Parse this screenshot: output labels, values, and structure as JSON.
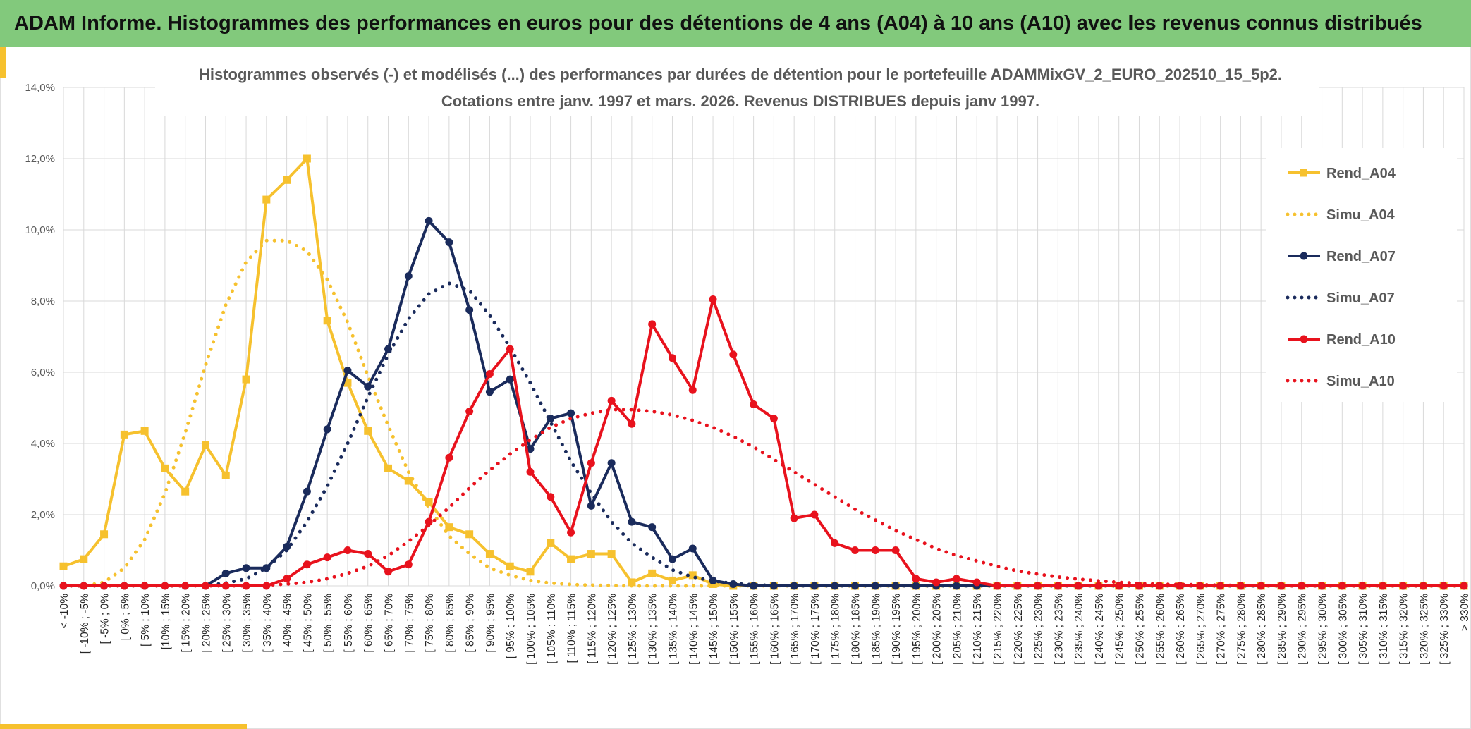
{
  "header": {
    "title": "ADAM Informe. Histogrammes des performances en euros pour des détentions de 4 ans (A04) à 10 ans (A10) avec les revenus connus distribués"
  },
  "colors": {
    "banner": "#82c97c",
    "accent": "#f6c12e",
    "a04": "#f6c12e",
    "a07": "#1a2b5c",
    "a10": "#e8121d",
    "grid": "#d9d9d9"
  },
  "chart_data": {
    "type": "line",
    "title": "Histogrammes observés (-) et modélisés (...) des performances par durées de détention pour le portefeuille ADAMMixGV_2_EURO_202510_15_5p2.",
    "subtitle": "Cotations entre janv. 1997 et mars. 2026. Revenus DISTRIBUES depuis janv 1997.",
    "xlabel": "",
    "ylabel": "",
    "ylim": [
      0,
      14
    ],
    "yticks": [
      0,
      2,
      4,
      6,
      8,
      10,
      12,
      14
    ],
    "ytick_labels": [
      "0,0%",
      "2,0%",
      "4,0%",
      "6,0%",
      "8,0%",
      "10,0%",
      "12,0%",
      "14,0%"
    ],
    "grid": true,
    "legend_position": "right",
    "categories": [
      "< -10%",
      "[ -10% ; -5%",
      "[ -5% ; 0%",
      "[ 0% ; 5%",
      "[ 5% ; 10%",
      "[10% ; 15%",
      "[ 15% ; 20%",
      "[ 20% ; 25%",
      "[ 25% ; 30%",
      "[ 30% ; 35%",
      "[ 35% ; 40%",
      "[ 40% ; 45%",
      "[ 45% ; 50%",
      "[ 50% ; 55%",
      "[ 55% ; 60%",
      "[ 60% ; 65%",
      "[ 65% ; 70%",
      "[ 70% ; 75%",
      "[ 75% ; 80%",
      "[ 80% ; 85%",
      "[ 85% ; 90%",
      "[ 90% ; 95%",
      "[ 95% ; 100%",
      "[ 100% ; 105%",
      "[ 105% ; 110%",
      "[ 110% ; 115%",
      "[ 115% ; 120%",
      "[ 120% ; 125%",
      "[ 125% ; 130%",
      "[ 130% ; 135%",
      "[ 135% ; 140%",
      "[ 140% ; 145%",
      "[ 145% ; 150%",
      "[ 150% ; 155%",
      "[ 155% ; 160%",
      "[ 160% ; 165%",
      "[ 165% ; 170%",
      "[ 170% ; 175%",
      "[ 175% ; 180%",
      "[ 180% ; 185%",
      "[ 185% ; 190%",
      "[ 190% ; 195%",
      "[ 195% ; 200%",
      "[ 200% ; 205%",
      "[ 205% ; 210%",
      "[ 210% ; 215%",
      "[ 215% ; 220%",
      "[ 220% ; 225%",
      "[ 225% ; 230%",
      "[ 230% ; 235%",
      "[ 235% ; 240%",
      "[ 240% ; 245%",
      "[ 245% ; 250%",
      "[ 250% ; 255%",
      "[ 255% ; 260%",
      "[ 260% ; 265%",
      "[ 265% ; 270%",
      "[ 270% ; 275%",
      "[ 275% ; 280%",
      "[ 280% ; 285%",
      "[ 285% ; 290%",
      "[ 290% ; 295%",
      "[ 295% ; 300%",
      "[ 300% ; 305%",
      "[ 305% ; 310%",
      "[ 310% ; 315%",
      "[ 315% ; 320%",
      "[ 320% ; 325%",
      "[ 325% ; 330%",
      "> 330%"
    ],
    "series": [
      {
        "name": "Rend_A04",
        "style": "solid",
        "marker": "square",
        "color": "#f6c12e",
        "values": [
          0.55,
          0.75,
          1.45,
          4.25,
          4.35,
          3.3,
          2.65,
          3.95,
          3.1,
          5.8,
          10.85,
          11.4,
          12.0,
          7.45,
          5.7,
          4.35,
          3.3,
          2.95,
          2.35,
          1.65,
          1.45,
          0.9,
          0.55,
          0.4,
          1.2,
          0.75,
          0.9,
          0.9,
          0.1,
          0.35,
          0.15,
          0.3,
          0.05,
          0,
          0,
          0,
          0,
          0,
          0,
          0,
          0,
          0,
          0,
          0,
          0,
          0,
          0,
          0,
          0,
          0,
          0,
          0,
          0,
          0,
          0,
          0,
          0,
          0,
          0,
          0,
          0,
          0,
          0,
          0,
          0,
          0,
          0,
          0,
          0,
          0
        ]
      },
      {
        "name": "Simu_A04",
        "style": "dotted",
        "marker": "none",
        "color": "#f6c12e",
        "values": [
          0,
          0,
          0.1,
          0.5,
          1.3,
          2.6,
          4.3,
          6.2,
          7.9,
          9.1,
          9.7,
          9.7,
          9.4,
          8.6,
          7.4,
          5.9,
          4.5,
          3.2,
          2.2,
          1.4,
          0.9,
          0.5,
          0.3,
          0.15,
          0.08,
          0.04,
          0.02,
          0.01,
          0,
          0,
          0,
          0,
          0,
          0,
          0,
          0,
          0,
          0,
          0,
          0,
          0,
          0,
          0,
          0,
          0,
          0,
          0,
          0,
          0,
          0,
          0,
          0,
          0,
          0,
          0,
          0,
          0,
          0,
          0,
          0,
          0,
          0,
          0,
          0,
          0,
          0,
          0,
          0,
          0,
          0
        ]
      },
      {
        "name": "Rend_A07",
        "style": "solid",
        "marker": "circle",
        "color": "#1a2b5c",
        "values": [
          0,
          0,
          0,
          0,
          0,
          0,
          0,
          0,
          0.35,
          0.5,
          0.5,
          1.1,
          2.65,
          4.4,
          6.05,
          5.6,
          6.65,
          8.7,
          10.25,
          9.65,
          7.75,
          5.45,
          5.8,
          3.85,
          4.7,
          4.85,
          2.25,
          3.45,
          1.8,
          1.65,
          0.75,
          1.05,
          0.15,
          0.05,
          0,
          0,
          0,
          0,
          0,
          0,
          0,
          0,
          0,
          0,
          0,
          0,
          0,
          0,
          0,
          0,
          0,
          0,
          0,
          0,
          0,
          0,
          0,
          0,
          0,
          0,
          0,
          0,
          0,
          0,
          0,
          0,
          0,
          0,
          0,
          0
        ]
      },
      {
        "name": "Simu_A07",
        "style": "dotted",
        "marker": "none",
        "color": "#1a2b5c",
        "values": [
          0,
          0,
          0,
          0,
          0,
          0,
          0,
          0.02,
          0.08,
          0.2,
          0.5,
          1.0,
          1.8,
          2.8,
          4.0,
          5.3,
          6.5,
          7.5,
          8.2,
          8.5,
          8.3,
          7.6,
          6.7,
          5.7,
          4.6,
          3.5,
          2.6,
          1.8,
          1.2,
          0.8,
          0.45,
          0.25,
          0.14,
          0.07,
          0.03,
          0.01,
          0,
          0,
          0,
          0,
          0,
          0,
          0,
          0,
          0,
          0,
          0,
          0,
          0,
          0,
          0,
          0,
          0,
          0,
          0,
          0,
          0,
          0,
          0,
          0,
          0,
          0,
          0,
          0,
          0,
          0,
          0,
          0,
          0,
          0
        ]
      },
      {
        "name": "Rend_A10",
        "style": "solid",
        "marker": "circle",
        "color": "#e8121d",
        "values": [
          0,
          0,
          0,
          0,
          0,
          0,
          0,
          0,
          0,
          0,
          0,
          0.2,
          0.6,
          0.8,
          1.0,
          0.9,
          0.4,
          0.6,
          1.8,
          3.6,
          4.9,
          5.95,
          6.65,
          3.2,
          2.5,
          1.5,
          3.45,
          5.2,
          4.55,
          7.35,
          6.4,
          5.5,
          8.05,
          6.5,
          5.1,
          4.7,
          1.9,
          2.0,
          1.2,
          1.0,
          1.0,
          1.0,
          0.2,
          0.1,
          0.2,
          0.1,
          0,
          0,
          0,
          0,
          0,
          0,
          0,
          0,
          0,
          0,
          0,
          0,
          0,
          0,
          0,
          0,
          0,
          0,
          0,
          0,
          0,
          0,
          0,
          0
        ]
      },
      {
        "name": "Simu_A10",
        "style": "dotted",
        "marker": "none",
        "color": "#e8121d",
        "values": [
          0,
          0,
          0,
          0,
          0,
          0,
          0,
          0,
          0,
          0,
          0.02,
          0.05,
          0.1,
          0.2,
          0.35,
          0.55,
          0.85,
          1.25,
          1.7,
          2.2,
          2.75,
          3.25,
          3.7,
          4.1,
          4.45,
          4.7,
          4.85,
          4.95,
          4.95,
          4.9,
          4.8,
          4.65,
          4.45,
          4.2,
          3.9,
          3.55,
          3.2,
          2.85,
          2.5,
          2.15,
          1.85,
          1.55,
          1.3,
          1.05,
          0.85,
          0.7,
          0.55,
          0.42,
          0.33,
          0.25,
          0.19,
          0.14,
          0.1,
          0.07,
          0.05,
          0.04,
          0.03,
          0.02,
          0.01,
          0.01,
          0,
          0,
          0,
          0,
          0,
          0,
          0,
          0,
          0,
          0
        ]
      }
    ]
  }
}
